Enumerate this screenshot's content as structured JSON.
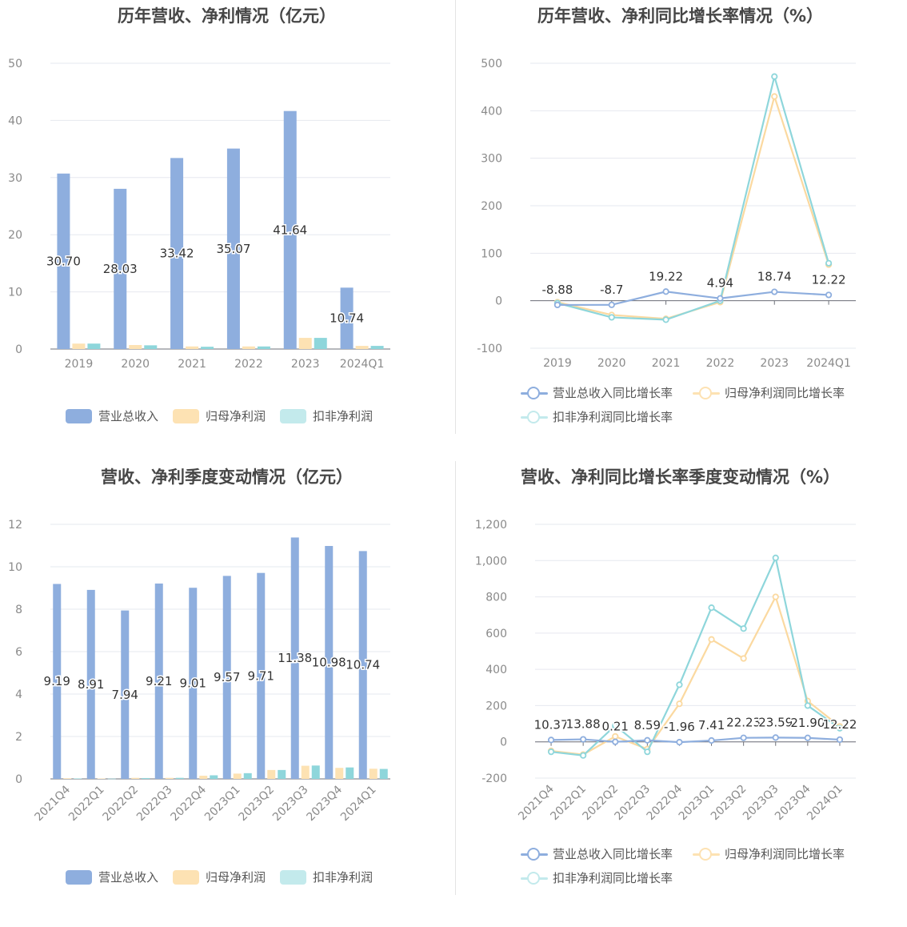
{
  "colors": {
    "revenue": "#8eaede",
    "netprofit": "#fde2b3",
    "deducted": "#8ed6db",
    "rev_line": "#8eaede",
    "np_line": "#fbd9a0",
    "ded_line": "#8ed6db"
  },
  "panels": {
    "p1": {
      "title": "历年营收、净利情况（亿元）",
      "legend": [
        "营业总收入",
        "归母净利润",
        "扣非净利润"
      ]
    },
    "p2": {
      "title": "历年营收、净利同比增长率情况（%）",
      "legend": [
        "营业总收入同比增长率",
        "归母净利润同比增长率",
        "扣非净利润同比增长率"
      ]
    },
    "p3": {
      "title": "营收、净利季度变动情况（亿元）",
      "legend": [
        "营业总收入",
        "归母净利润",
        "扣非净利润"
      ]
    },
    "p4": {
      "title": "营收、净利同比增长率季度变动情况（%）",
      "legend": [
        "营业总收入同比增长率",
        "归母净利润同比增长率",
        "扣非净利润同比增长率"
      ]
    }
  },
  "chart_data": [
    {
      "type": "bar",
      "title": "历年营收、净利情况（亿元）",
      "categories": [
        "2019",
        "2020",
        "2021",
        "2022",
        "2023",
        "2024Q1"
      ],
      "ylim": [
        0,
        50
      ],
      "yticks": [
        0,
        10,
        20,
        30,
        40,
        50
      ],
      "series": [
        {
          "name": "营业总收入",
          "values": [
            30.7,
            28.03,
            33.42,
            35.07,
            41.64,
            10.74
          ],
          "labels": [
            "30.70",
            "28.03",
            "33.42",
            "35.07",
            "41.64",
            "10.74"
          ]
        },
        {
          "name": "归母净利润",
          "values": [
            0.95,
            0.7,
            0.45,
            0.45,
            1.95,
            0.55
          ]
        },
        {
          "name": "扣非净利润",
          "values": [
            0.95,
            0.65,
            0.4,
            0.45,
            1.95,
            0.55
          ]
        }
      ],
      "legend_position": "bottom",
      "grid": true
    },
    {
      "type": "line",
      "title": "历年营收、净利同比增长率情况（%）",
      "categories": [
        "2019",
        "2020",
        "2021",
        "2022",
        "2023",
        "2024Q1"
      ],
      "ylim": [
        -100,
        500
      ],
      "yticks": [
        -100,
        0,
        100,
        200,
        300,
        400,
        500
      ],
      "series": [
        {
          "name": "营业总收入同比增长率",
          "values": [
            -8.88,
            -8.7,
            19.22,
            4.94,
            18.74,
            12.22
          ],
          "labels": [
            "-8.88",
            "-8.7",
            "19.22",
            "4.94",
            "18.74",
            "12.22"
          ]
        },
        {
          "name": "归母净利润同比增长率",
          "values": [
            -3,
            -30,
            -38,
            -3,
            430,
            76
          ]
        },
        {
          "name": "扣非净利润同比增长率",
          "values": [
            -5,
            -35,
            -40,
            0,
            472,
            79
          ]
        }
      ],
      "legend_position": "bottom",
      "grid": true
    },
    {
      "type": "bar",
      "title": "营收、净利季度变动情况（亿元）",
      "categories": [
        "2021Q4",
        "2022Q1",
        "2022Q2",
        "2022Q3",
        "2022Q4",
        "2023Q1",
        "2023Q2",
        "2023Q3",
        "2023Q4",
        "2024Q1"
      ],
      "ylim": [
        0,
        12
      ],
      "yticks": [
        0,
        2,
        4,
        6,
        8,
        10,
        12
      ],
      "series": [
        {
          "name": "营业总收入",
          "values": [
            9.19,
            8.91,
            7.94,
            9.21,
            9.01,
            9.57,
            9.71,
            11.38,
            10.98,
            10.74
          ],
          "labels": [
            "9.19",
            "8.91",
            "7.94",
            "9.21",
            "9.01",
            "9.57",
            "9.71",
            "11.38",
            "10.98",
            "10.74"
          ]
        },
        {
          "name": "归母净利润",
          "values": [
            0.03,
            0.02,
            0.05,
            0.05,
            0.15,
            0.25,
            0.42,
            0.62,
            0.52,
            0.48
          ]
        },
        {
          "name": "扣非净利润",
          "values": [
            0.02,
            0.01,
            0.04,
            0.05,
            0.17,
            0.27,
            0.42,
            0.63,
            0.54,
            0.47
          ]
        }
      ],
      "legend_position": "bottom",
      "grid": true
    },
    {
      "type": "line",
      "title": "营收、净利同比增长率季度变动情况（%）",
      "categories": [
        "2021Q4",
        "2022Q1",
        "2022Q2",
        "2022Q3",
        "2022Q4",
        "2023Q1",
        "2023Q2",
        "2023Q3",
        "2023Q4",
        "2024Q1"
      ],
      "ylim": [
        -200,
        1200
      ],
      "yticks": [
        -200,
        0,
        200,
        400,
        600,
        800,
        1000,
        1200
      ],
      "ytick_labels": [
        "-200",
        "0",
        "200",
        "400",
        "600",
        "800",
        "1,000",
        "1,200"
      ],
      "series": [
        {
          "name": "营业总收入同比增长率",
          "values": [
            10.37,
            13.88,
            0.21,
            8.59,
            -1.96,
            7.41,
            22.23,
            23.59,
            21.9,
            12.22
          ],
          "labels": [
            "10.37",
            "13.88",
            "0.21",
            "8.59",
            "-1.96",
            "7.41",
            "22.23",
            "23.59",
            "21.90",
            "12.22"
          ]
        },
        {
          "name": "归母净利润同比增长率",
          "values": [
            -50,
            -70,
            30,
            -40,
            210,
            565,
            460,
            800,
            225,
            85
          ]
        },
        {
          "name": "扣非净利润同比增长率",
          "values": [
            -55,
            -75,
            90,
            -55,
            315,
            740,
            625,
            1015,
            200,
            75
          ]
        }
      ],
      "legend_position": "bottom",
      "grid": true
    }
  ]
}
